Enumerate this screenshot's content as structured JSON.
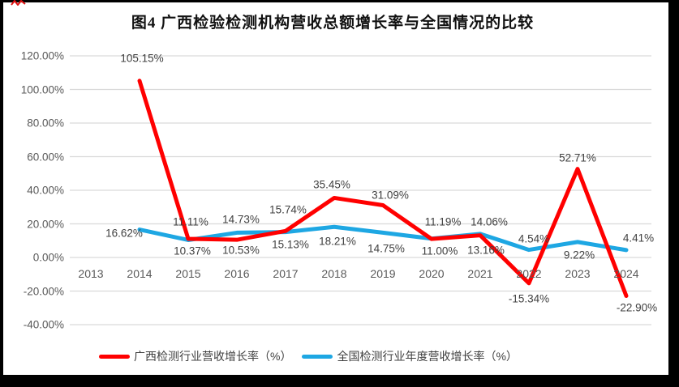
{
  "title": "图4 广西检验检测机构营收总额增长率与全国情况的比较",
  "colors": {
    "guangxi_line": "#FF0000",
    "national_line": "#1EA7E3",
    "gridline": "#D9D9D9",
    "axis_text": "#595959",
    "data_label_text": "#3F3F3F",
    "frame_border": "#000000",
    "scribble_mark": "#E01010"
  },
  "legend": [
    {
      "label": "广西检测行业营收增长率（%）"
    },
    {
      "label": "全国检测行业年度营收增长率（%）"
    }
  ],
  "chart_data": {
    "type": "line",
    "title": "图4 广西检验检测机构营收总额增长率与全国情况的比较",
    "categories": [
      "2013",
      "2014",
      "2015",
      "2016",
      "2017",
      "2018",
      "2019",
      "2020",
      "2021",
      "2022",
      "2023",
      "2024"
    ],
    "grid": true,
    "legend_position": "bottom",
    "y_axis": {
      "min": -40,
      "max": 120,
      "step": 20,
      "tick_values": [
        120,
        100,
        80,
        60,
        40,
        20,
        0,
        -20,
        -40
      ],
      "tick_labels": [
        "120.00%",
        "100.00%",
        "80.00%",
        "60.00%",
        "40.00%",
        "20.00%",
        "0.00%",
        "-20.00%",
        "-40.00%"
      ]
    },
    "series": [
      {
        "name": "全国检测行业年度营收增长率（%）",
        "color": "#1EA7E3",
        "points": [
          {
            "year": 2014,
            "value": 16.62,
            "label": "16.62%",
            "label_offset": [
              -19,
              4
            ]
          },
          {
            "year": 2015,
            "value": 10.37,
            "label": "10.37%",
            "label_offset": [
              5,
              14
            ]
          },
          {
            "year": 2016,
            "value": 14.73,
            "label": "14.73%",
            "label_offset": [
              5,
              -16
            ]
          },
          {
            "year": 2017,
            "value": 15.13,
            "label": "15.13%",
            "label_offset": [
              6,
              15
            ]
          },
          {
            "year": 2018,
            "value": 18.21,
            "label": "18.21%",
            "label_offset": [
              4,
              18
            ]
          },
          {
            "year": 2019,
            "value": 14.75,
            "label": "14.75%",
            "label_offset": [
              4,
              20
            ]
          },
          {
            "year": 2020,
            "value": 11.19,
            "label": "11.19%",
            "label_offset": [
              14,
              -21
            ]
          },
          {
            "year": 2021,
            "value": 14.06,
            "label": "14.06%",
            "label_offset": [
              11,
              -15
            ]
          },
          {
            "year": 2022,
            "value": 4.54,
            "label": "4.54%",
            "label_offset": [
              6,
              -14
            ]
          },
          {
            "year": 2023,
            "value": 9.22,
            "label": "9.22%",
            "label_offset": [
              2,
              16
            ]
          },
          {
            "year": 2024,
            "value": 4.41,
            "label": "4.41%",
            "label_offset": [
              15,
              -15
            ]
          }
        ]
      },
      {
        "name": "广西检测行业营收增长率（%）",
        "color": "#FF0000",
        "points": [
          {
            "year": 2014,
            "value": 105.15,
            "label": "105.15%",
            "label_offset": [
              3,
              -28
            ]
          },
          {
            "year": 2015,
            "value": 11.11,
            "label": "11.11%",
            "label_offset": [
              3,
              -21
            ]
          },
          {
            "year": 2016,
            "value": 10.53,
            "label": "10.53%",
            "label_offset": [
              5,
              13
            ]
          },
          {
            "year": 2017,
            "value": 15.74,
            "label": "15.74%",
            "label_offset": [
              3,
              -26
            ]
          },
          {
            "year": 2018,
            "value": 35.45,
            "label": "35.45%",
            "label_offset": [
              -3,
              -16
            ]
          },
          {
            "year": 2019,
            "value": 31.09,
            "label": "31.09%",
            "label_offset": [
              9,
              -12
            ]
          },
          {
            "year": 2020,
            "value": 11.0,
            "label": "11.00%",
            "label_offset": [
              10,
              15
            ]
          },
          {
            "year": 2021,
            "value": 13.16,
            "label": "13.16%",
            "label_offset": [
              7,
              18
            ]
          },
          {
            "year": 2022,
            "value": -15.34,
            "label": "-15.34%",
            "label_offset": [
              0,
              19
            ]
          },
          {
            "year": 2023,
            "value": 52.71,
            "label": "52.71%",
            "label_offset": [
              0,
              -14
            ]
          },
          {
            "year": 2024,
            "value": -22.9,
            "label": "-22.90%",
            "label_offset": [
              13,
              14
            ]
          }
        ]
      }
    ]
  }
}
